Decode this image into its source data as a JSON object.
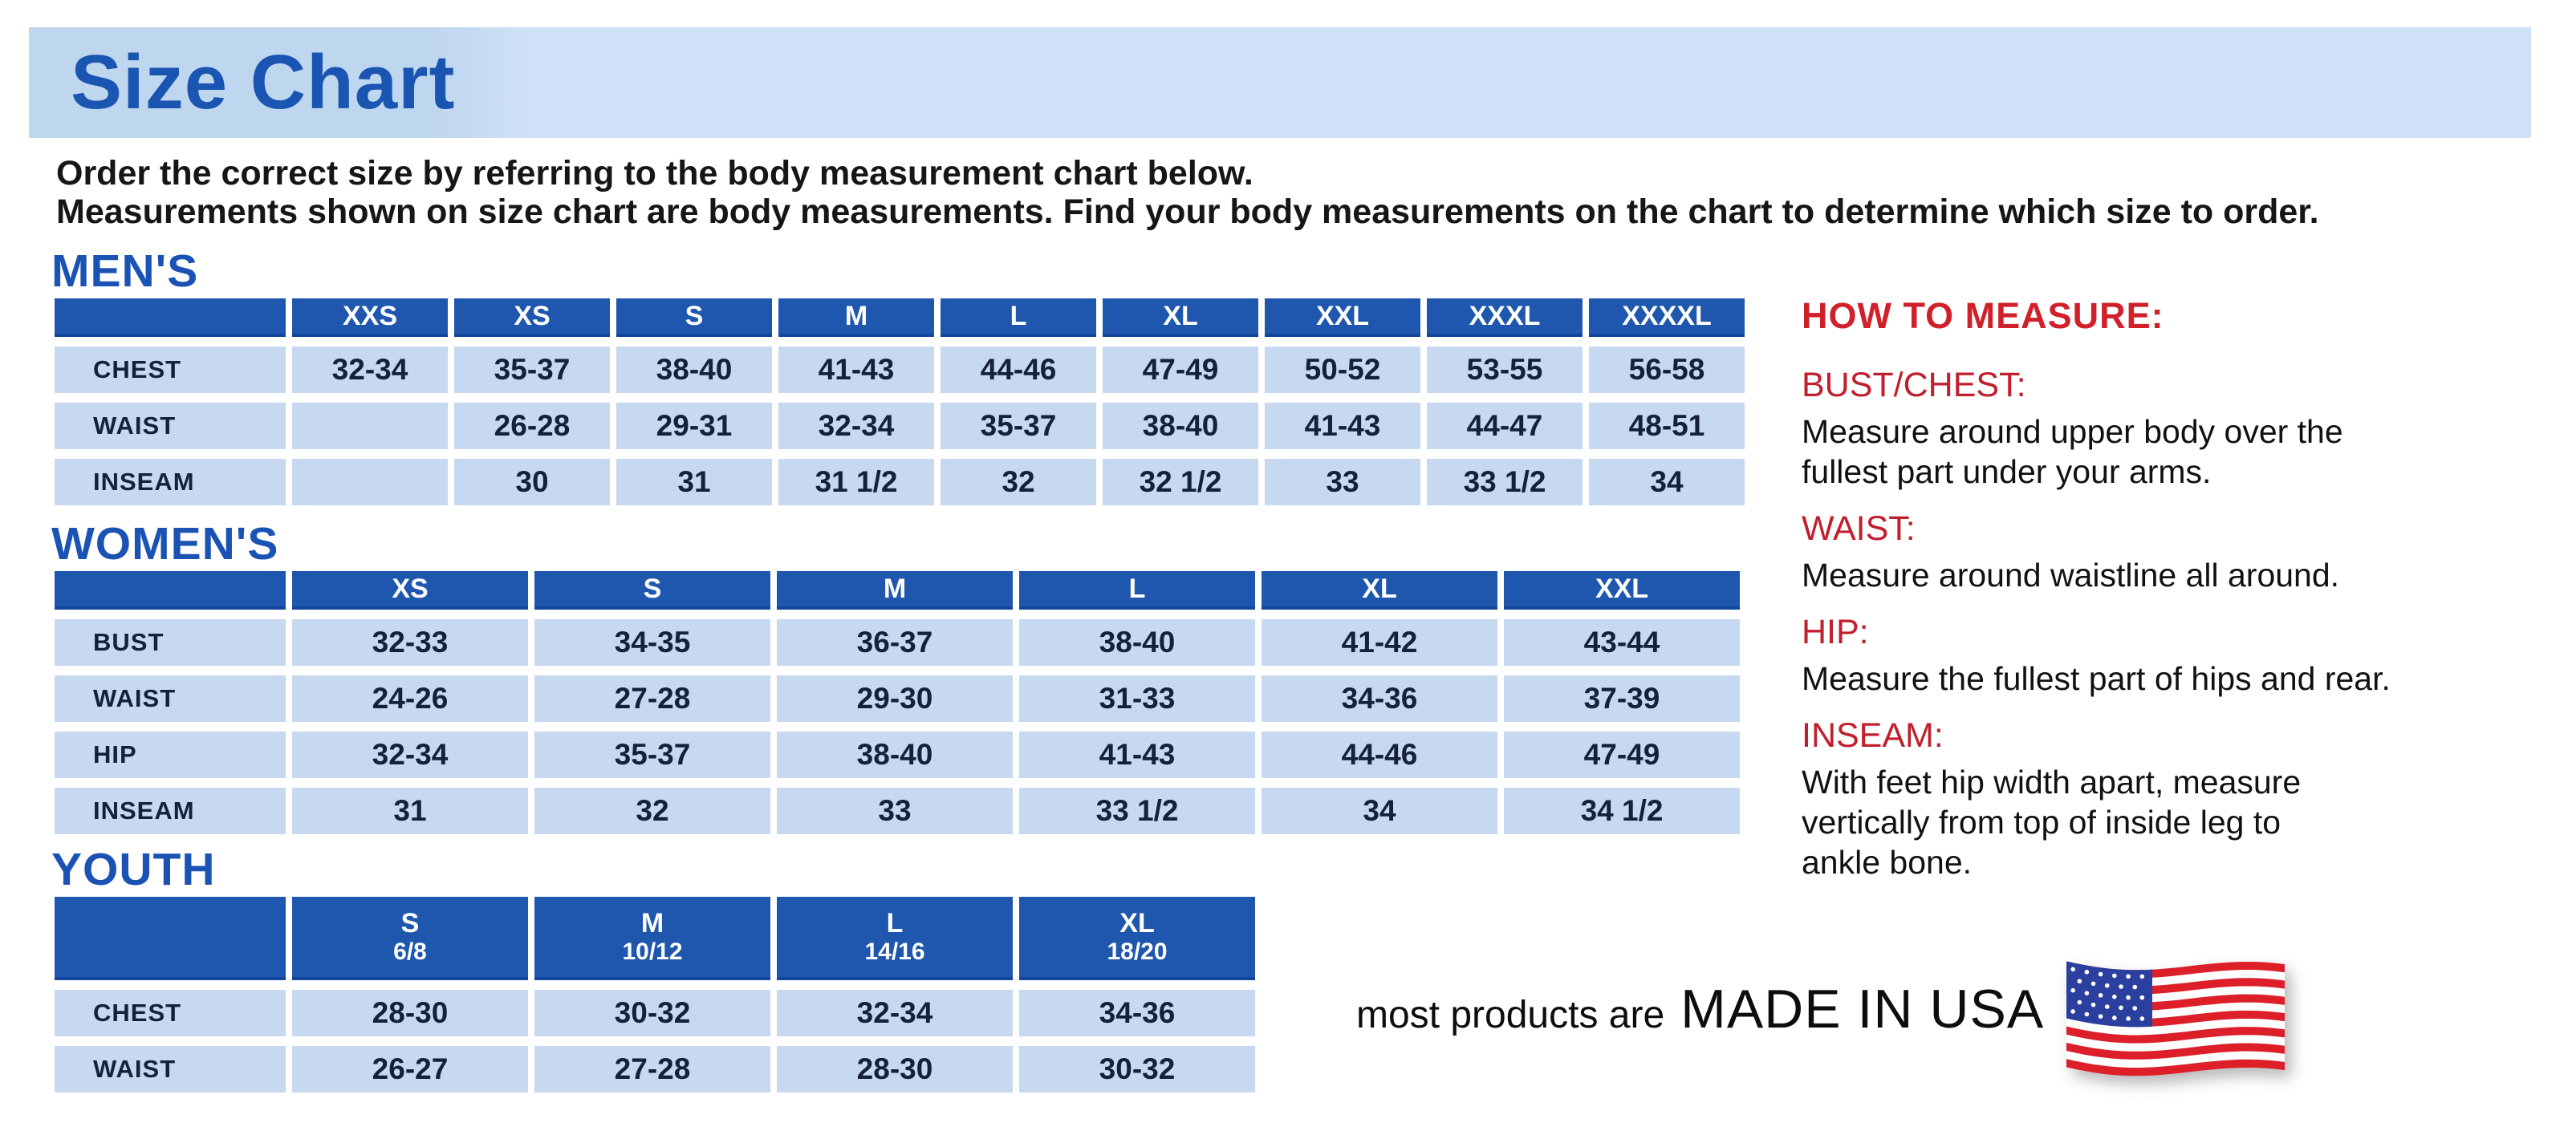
{
  "banner": {
    "title": "Size Chart"
  },
  "intro": {
    "line1": "Order the correct size by referring to the body measurement chart below.",
    "line2": "Measurements shown on size chart are body measurements.  Find your body measurements on the chart to determine which size to order."
  },
  "tables": [
    {
      "id": "mens",
      "heading": "MEN'S",
      "columns": [
        {
          "size": "XXS"
        },
        {
          "size": "XS"
        },
        {
          "size": "S"
        },
        {
          "size": "M"
        },
        {
          "size": "L"
        },
        {
          "size": "XL"
        },
        {
          "size": "XXL"
        },
        {
          "size": "XXXL"
        },
        {
          "size": "XXXXL"
        }
      ],
      "rows": [
        {
          "label": "CHEST",
          "values": [
            "32-34",
            "35-37",
            "38-40",
            "41-43",
            "44-46",
            "47-49",
            "50-52",
            "53-55",
            "56-58"
          ]
        },
        {
          "label": "WAIST",
          "values": [
            "",
            "26-28",
            "29-31",
            "32-34",
            "35-37",
            "38-40",
            "41-43",
            "44-47",
            "48-51"
          ]
        },
        {
          "label": "INSEAM",
          "values": [
            "",
            "30",
            "31",
            "31 1/2",
            "32",
            "32 1/2",
            "33",
            "33 1/2",
            "34"
          ]
        }
      ]
    },
    {
      "id": "womens",
      "heading": "WOMEN'S",
      "columns": [
        {
          "size": "XS"
        },
        {
          "size": "S"
        },
        {
          "size": "M"
        },
        {
          "size": "L"
        },
        {
          "size": "XL"
        },
        {
          "size": "XXL"
        }
      ],
      "rows": [
        {
          "label": "BUST",
          "values": [
            "32-33",
            "34-35",
            "36-37",
            "38-40",
            "41-42",
            "43-44"
          ]
        },
        {
          "label": "WAIST",
          "values": [
            "24-26",
            "27-28",
            "29-30",
            "31-33",
            "34-36",
            "37-39"
          ]
        },
        {
          "label": "HIP",
          "values": [
            "32-34",
            "35-37",
            "38-40",
            "41-43",
            "44-46",
            "47-49"
          ]
        },
        {
          "label": "INSEAM",
          "values": [
            "31",
            "32",
            "33",
            "33 1/2",
            "34",
            "34 1/2"
          ]
        }
      ]
    },
    {
      "id": "youth",
      "heading": "YOUTH",
      "columns": [
        {
          "size": "S",
          "range": "6/8"
        },
        {
          "size": "M",
          "range": "10/12"
        },
        {
          "size": "L",
          "range": "14/16"
        },
        {
          "size": "XL",
          "range": "18/20"
        }
      ],
      "rows": [
        {
          "label": "CHEST",
          "values": [
            "28-30",
            "30-32",
            "32-34",
            "34-36"
          ]
        },
        {
          "label": "WAIST",
          "values": [
            "26-27",
            "27-28",
            "28-30",
            "30-32"
          ]
        }
      ]
    }
  ],
  "how_to_measure": {
    "heading": "HOW TO MEASURE:",
    "sections": [
      {
        "label": "BUST/CHEST:",
        "text": "Measure around upper body over the\nfullest part under your arms."
      },
      {
        "label": "WAIST:",
        "text": "Measure around waistline all around."
      },
      {
        "label": "HIP:",
        "text": "Measure the fullest part of hips and rear."
      },
      {
        "label": "INSEAM:",
        "text": "With feet hip width apart, measure\nvertically from top of inside leg to\nankle bone."
      }
    ]
  },
  "made_in": {
    "prefix": "most products are",
    "emphasis": "MADE IN USA",
    "flag_icon": "us-flag-icon"
  },
  "colors": {
    "banner_bg": "#bfd6ef",
    "banner_bg_right": "#cfe1f6",
    "title_blue": "#1a55b2",
    "heading_blue": "#1b53b5",
    "table_header_bg": "#1f57ae",
    "cell_bg": "#c7d9f1",
    "cell_text": "#15203a",
    "heading_red": "#d0202a",
    "label_red": "#c01f2d",
    "flag_red": "#dd1f2a",
    "flag_blue": "#2b3f9e"
  }
}
